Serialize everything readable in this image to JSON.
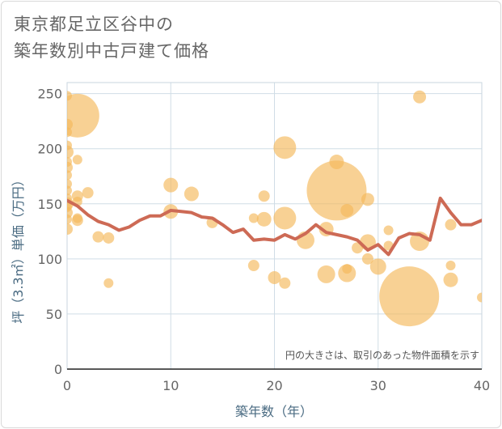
{
  "title": {
    "line1": "東京都足立区谷中の",
    "line2": "築年数別中古戸建て価格"
  },
  "chart_data": {
    "type": "scatter",
    "title": "東京都足立区谷中の築年数別中古戸建て価格",
    "xlabel": "築年数（年）",
    "ylabel": "坪（3.3㎡）単価（万円）",
    "xlim": [
      0,
      40
    ],
    "ylim": [
      0,
      260
    ],
    "xticks": [
      0,
      10,
      20,
      30,
      40
    ],
    "yticks": [
      0,
      50,
      100,
      150,
      200,
      250
    ],
    "grid": true,
    "annotation": "円の大きさは、取引のあった物件面積を示す",
    "colors": {
      "bubble": "#f5b95a",
      "line": "#cd6a55",
      "grid": "#d0dde6"
    },
    "bubbles": [
      {
        "x": 0,
        "y": 248,
        "size": 6
      },
      {
        "x": 0,
        "y": 222,
        "size": 7
      },
      {
        "x": 0,
        "y": 215,
        "size": 6
      },
      {
        "x": 0,
        "y": 203,
        "size": 6
      },
      {
        "x": 0,
        "y": 197,
        "size": 8
      },
      {
        "x": 0,
        "y": 188,
        "size": 6
      },
      {
        "x": 0,
        "y": 183,
        "size": 7
      },
      {
        "x": 0,
        "y": 176,
        "size": 6
      },
      {
        "x": 0,
        "y": 168,
        "size": 6
      },
      {
        "x": 0,
        "y": 162,
        "size": 6
      },
      {
        "x": 0,
        "y": 155,
        "size": 6
      },
      {
        "x": 0,
        "y": 150,
        "size": 8
      },
      {
        "x": 0,
        "y": 147,
        "size": 6
      },
      {
        "x": 0,
        "y": 142,
        "size": 7
      },
      {
        "x": 0,
        "y": 136,
        "size": 6
      },
      {
        "x": 0,
        "y": 127,
        "size": 7
      },
      {
        "x": 1,
        "y": 230,
        "size": 27
      },
      {
        "x": 1,
        "y": 190,
        "size": 6
      },
      {
        "x": 1,
        "y": 157,
        "size": 7
      },
      {
        "x": 1,
        "y": 152,
        "size": 6
      },
      {
        "x": 1,
        "y": 137,
        "size": 6
      },
      {
        "x": 1,
        "y": 135,
        "size": 7
      },
      {
        "x": 2,
        "y": 160,
        "size": 7
      },
      {
        "x": 3,
        "y": 120,
        "size": 7
      },
      {
        "x": 4,
        "y": 119,
        "size": 7
      },
      {
        "x": 4,
        "y": 78,
        "size": 6
      },
      {
        "x": 10,
        "y": 167,
        "size": 9
      },
      {
        "x": 10,
        "y": 143,
        "size": 9
      },
      {
        "x": 12,
        "y": 159,
        "size": 9
      },
      {
        "x": 14,
        "y": 133,
        "size": 7
      },
      {
        "x": 18,
        "y": 137,
        "size": 6
      },
      {
        "x": 18,
        "y": 94,
        "size": 7
      },
      {
        "x": 19,
        "y": 157,
        "size": 7
      },
      {
        "x": 19,
        "y": 136,
        "size": 9
      },
      {
        "x": 20,
        "y": 83,
        "size": 8
      },
      {
        "x": 21,
        "y": 201,
        "size": 14
      },
      {
        "x": 21,
        "y": 137,
        "size": 14
      },
      {
        "x": 21,
        "y": 78,
        "size": 7
      },
      {
        "x": 23,
        "y": 117,
        "size": 11
      },
      {
        "x": 25,
        "y": 127,
        "size": 9
      },
      {
        "x": 25,
        "y": 86,
        "size": 11
      },
      {
        "x": 26,
        "y": 188,
        "size": 9
      },
      {
        "x": 26,
        "y": 162,
        "size": 37
      },
      {
        "x": 27,
        "y": 144,
        "size": 8
      },
      {
        "x": 27,
        "y": 91,
        "size": 6
      },
      {
        "x": 27,
        "y": 87,
        "size": 11
      },
      {
        "x": 28,
        "y": 110,
        "size": 7
      },
      {
        "x": 29,
        "y": 154,
        "size": 8
      },
      {
        "x": 29,
        "y": 115,
        "size": 10
      },
      {
        "x": 29,
        "y": 100,
        "size": 7
      },
      {
        "x": 30,
        "y": 93,
        "size": 10
      },
      {
        "x": 31,
        "y": 112,
        "size": 6
      },
      {
        "x": 31,
        "y": 126,
        "size": 6
      },
      {
        "x": 33,
        "y": 66,
        "size": 37
      },
      {
        "x": 34,
        "y": 247,
        "size": 8
      },
      {
        "x": 34,
        "y": 116,
        "size": 12
      },
      {
        "x": 37,
        "y": 131,
        "size": 7
      },
      {
        "x": 37,
        "y": 94,
        "size": 6
      },
      {
        "x": 37,
        "y": 81,
        "size": 9
      },
      {
        "x": 40,
        "y": 65,
        "size": 6
      }
    ],
    "trend_line": {
      "x": [
        0,
        1,
        2,
        3,
        4,
        5,
        6,
        7,
        8,
        9,
        10,
        11,
        12,
        13,
        14,
        15,
        16,
        17,
        18,
        19,
        20,
        21,
        22,
        23,
        24,
        25,
        26,
        27,
        28,
        29,
        30,
        31,
        32,
        33,
        34,
        35,
        36,
        37,
        38,
        39,
        40
      ],
      "y": [
        153,
        148,
        140,
        134,
        131,
        126,
        129,
        135,
        139,
        139,
        144,
        143,
        142,
        138,
        137,
        131,
        124,
        127,
        117,
        118,
        117,
        122,
        118,
        123,
        131,
        124,
        122,
        120,
        117,
        108,
        113,
        104,
        119,
        123,
        122,
        117,
        155,
        142,
        131,
        131,
        135
      ]
    }
  }
}
